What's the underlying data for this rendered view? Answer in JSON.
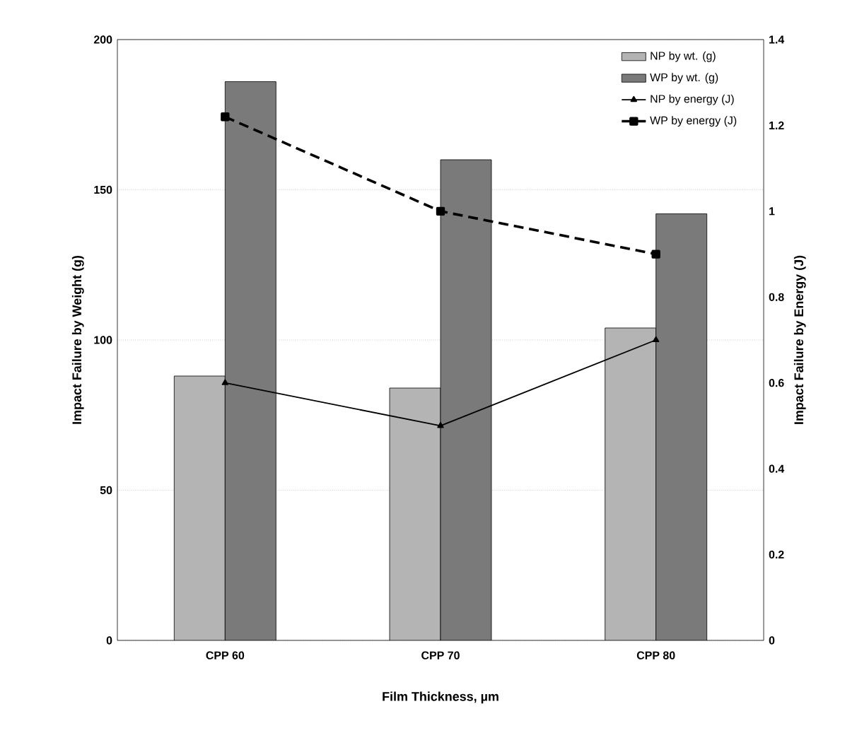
{
  "chart_data": {
    "type": "bar",
    "xlabel": "Film Thickness, µm",
    "ylabel": "Impact Failure by Weight (g)",
    "y2label": "Impact Failure by Energy (J)",
    "categories": [
      "CPP 60",
      "CPP 70",
      "CPP 80"
    ],
    "series": [
      {
        "name": "NP by wt. (g)",
        "color": "#b4b4b4",
        "values": [
          88,
          84,
          104
        ]
      },
      {
        "name": "WP by wt. (g)",
        "color": "#7a7a7a",
        "values": [
          186,
          160,
          142
        ]
      },
      {
        "name": "NP by energy (J)",
        "type": "line",
        "axis": "y2",
        "color": "#000000",
        "marker": "triangle",
        "line_style": "solid",
        "values": [
          0.6,
          0.5,
          0.7
        ]
      },
      {
        "name": "WP by energy (J)",
        "type": "line",
        "axis": "y2",
        "color": "#000000",
        "marker": "square",
        "line_style": "dashed",
        "values": [
          1.22,
          1.0,
          0.9
        ]
      }
    ],
    "ylim": [
      0,
      200
    ],
    "yticks": [
      0,
      50,
      100,
      150,
      200
    ],
    "y2lim": [
      0,
      1.4
    ],
    "y2ticks": [
      0,
      0.2,
      0.4,
      0.6,
      0.8,
      1,
      1.2,
      1.4
    ],
    "grid": "y",
    "legend": "top right"
  }
}
